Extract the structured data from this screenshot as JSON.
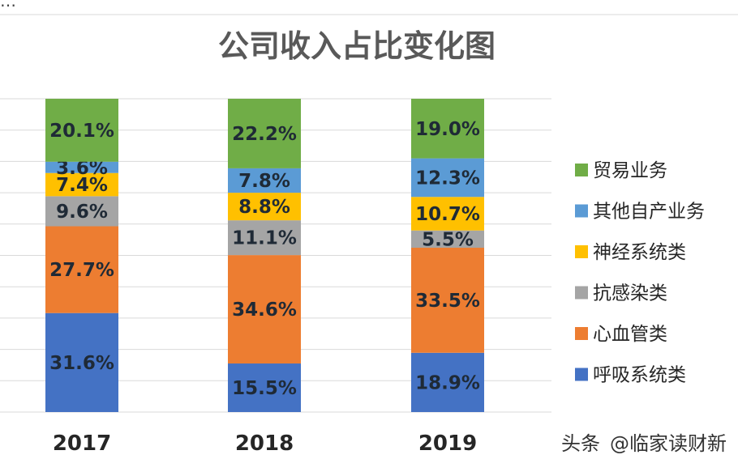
{
  "header_fragment": "…",
  "chart_data": {
    "type": "bar",
    "stacked": true,
    "percent_stacked": true,
    "title": "公司收入占比变化图",
    "xlabel": "",
    "ylabel": "",
    "ylim": [
      0,
      100
    ],
    "grid": true,
    "legend_position": "right",
    "categories": [
      "2017",
      "2018",
      "2019"
    ],
    "series": [
      {
        "name": "呼吸系统类",
        "color": "#4472c4",
        "values": [
          31.6,
          15.5,
          18.9
        ],
        "labels": [
          "31.6%",
          "15.5%",
          "18.9%"
        ]
      },
      {
        "name": "心血管类",
        "color": "#ed7d31",
        "values": [
          27.7,
          34.6,
          33.5
        ],
        "labels": [
          "27.7%",
          "34.6%",
          "33.5%"
        ]
      },
      {
        "name": "抗感染类",
        "color": "#a5a5a5",
        "values": [
          9.6,
          11.1,
          5.5
        ],
        "labels": [
          "9.6%",
          "11.1%",
          "5.5%"
        ]
      },
      {
        "name": "神经系统类",
        "color": "#ffc000",
        "values": [
          7.4,
          8.8,
          10.7
        ],
        "labels": [
          "7.4%",
          "8.8%",
          "10.7%"
        ]
      },
      {
        "name": "其他自产业务",
        "color": "#5b9bd5",
        "values": [
          3.6,
          7.8,
          12.3
        ],
        "labels": [
          "3.6%",
          "7.8%",
          "12.3%"
        ]
      },
      {
        "name": "贸易业务",
        "color": "#70ad47",
        "values": [
          20.1,
          22.2,
          19.0
        ],
        "labels": [
          "20.1%",
          "22.2%",
          "19.0%"
        ]
      }
    ],
    "legend_order": [
      "贸易业务",
      "其他自产业务",
      "神经系统类",
      "抗感染类",
      "心血管类",
      "呼吸系统类"
    ]
  },
  "watermark": {
    "prefix": "头条",
    "handle": "@临家读财新"
  }
}
